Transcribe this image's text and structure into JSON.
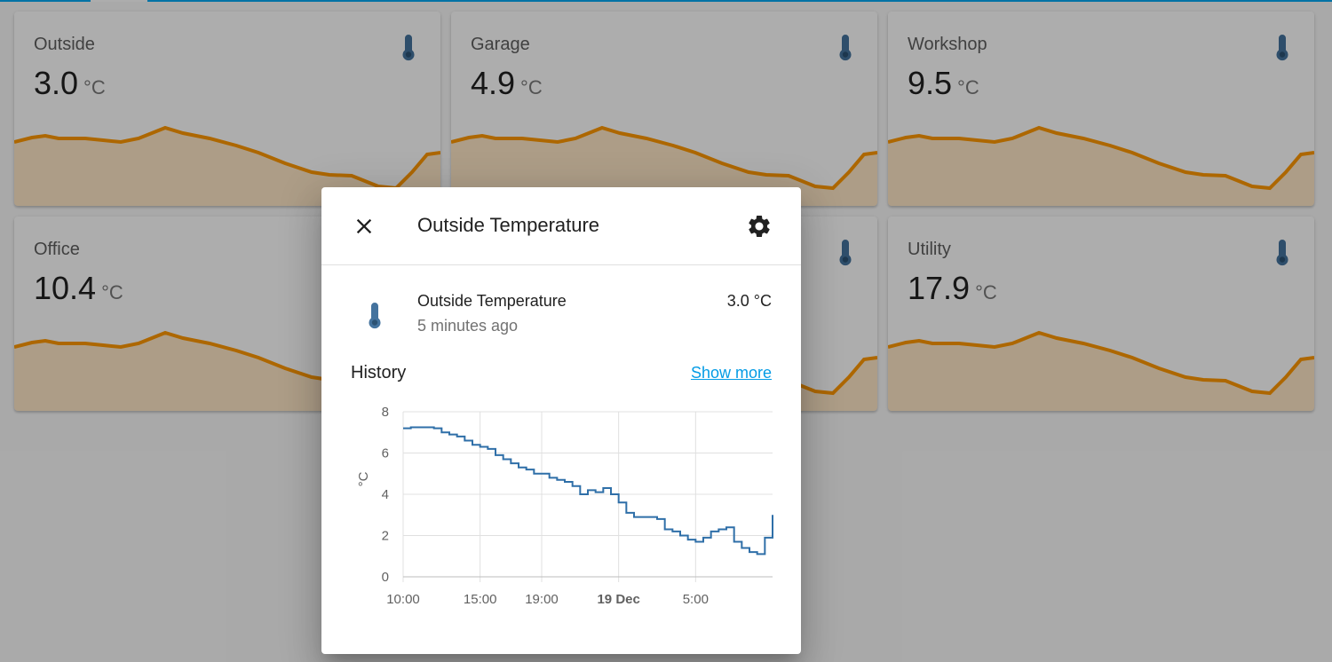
{
  "colors": {
    "accent": "#03a9f4",
    "sparkline": "#ff9800",
    "sparkline_fill": "#ff9800",
    "icon": "#44739e",
    "chart_line": "#2f6fa8",
    "link": "#039be5"
  },
  "cards": [
    {
      "name": "Outside",
      "value": "3.0",
      "unit": "°C",
      "icon": "thermometer-icon"
    },
    {
      "name": "Garage",
      "value": "4.9",
      "unit": "°C",
      "icon": "thermometer-icon"
    },
    {
      "name": "Workshop",
      "value": "9.5",
      "unit": "°C",
      "icon": "thermometer-icon"
    },
    {
      "name": "Office",
      "value": "10.4",
      "unit": "°C",
      "icon": "thermometer-icon"
    },
    {
      "name": "",
      "value": "",
      "unit": "",
      "icon": "thermometer-icon"
    },
    {
      "name": "Utility",
      "value": "17.9",
      "unit": "°C",
      "icon": "thermometer-icon"
    }
  ],
  "dialog": {
    "title": "Outside Temperature",
    "close_icon": "close-icon",
    "settings_icon": "gear-icon",
    "entity": {
      "name": "Outside Temperature",
      "last_changed": "5 minutes ago",
      "state": "3.0 °C",
      "icon": "thermometer-icon"
    },
    "history_label": "History",
    "show_more": "Show more"
  },
  "chart_data": {
    "type": "line",
    "title": "",
    "xlabel": "",
    "ylabel": "°C",
    "ylim": [
      0,
      8
    ],
    "yticks": [
      0,
      2,
      4,
      6,
      8
    ],
    "grid": true,
    "x_ticks": [
      {
        "label": "10:00",
        "h": 0,
        "bold": false
      },
      {
        "label": "15:00",
        "h": 5,
        "bold": false
      },
      {
        "label": "19:00",
        "h": 9,
        "bold": false
      },
      {
        "label": "19 Dec",
        "h": 14,
        "bold": true
      },
      {
        "label": "5:00",
        "h": 19,
        "bold": false
      }
    ],
    "series": [
      {
        "name": "",
        "step": true,
        "x_hours": [
          0,
          0.5,
          1,
          1.5,
          2,
          2.5,
          3,
          3.5,
          4,
          4.5,
          5,
          5.5,
          6,
          6.5,
          7,
          7.5,
          8,
          8.5,
          9,
          9.5,
          10,
          10.5,
          11,
          11.5,
          12,
          12.5,
          13,
          13.5,
          14,
          14.5,
          15,
          15.5,
          16,
          16.5,
          17,
          17.5,
          18,
          18.5,
          19,
          19.5,
          20,
          20.5,
          21,
          21.5,
          22,
          22.5,
          23,
          23.5,
          24
        ],
        "values": [
          7.2,
          7.25,
          7.25,
          7.25,
          7.2,
          7.0,
          6.9,
          6.8,
          6.6,
          6.4,
          6.3,
          6.2,
          5.9,
          5.7,
          5.5,
          5.3,
          5.2,
          5.0,
          5.0,
          4.8,
          4.7,
          4.6,
          4.4,
          4.0,
          4.2,
          4.1,
          4.3,
          4.0,
          3.6,
          3.1,
          2.9,
          2.9,
          2.9,
          2.8,
          2.3,
          2.2,
          2.0,
          1.8,
          1.7,
          1.9,
          2.2,
          2.3,
          2.4,
          1.7,
          1.4,
          1.2,
          1.1,
          1.9,
          3.0
        ]
      }
    ]
  }
}
